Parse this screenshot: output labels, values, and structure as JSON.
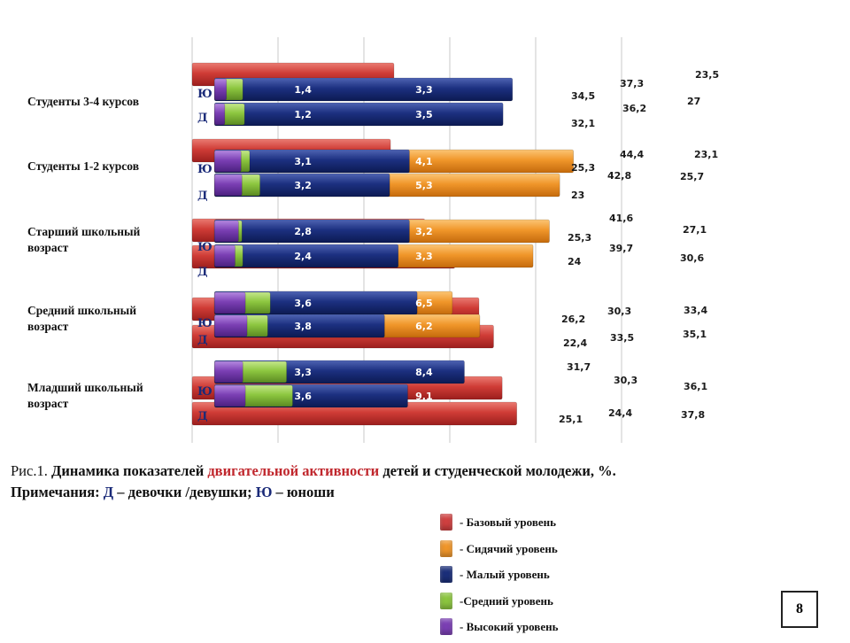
{
  "chart_data": {
    "type": "bar",
    "title": "",
    "xlim": [
      0,
      50
    ],
    "x_ticks": [
      "0",
      "10",
      "20",
      "30",
      "40",
      "50"
    ],
    "grid": true,
    "categories": [
      "Студенты 3-4 курсов",
      "Студенты 1-2 курсов",
      "Старший школьный возраст",
      "Средний школьный возраст",
      "Младший школьный возраст"
    ],
    "group_codes": {
      "male": "Ю",
      "female": "Д"
    },
    "series": [
      {
        "name": "- Базовый уровень",
        "color": "#d04040",
        "values_Ю": [
          23.5,
          23.1,
          27.1,
          33.4,
          36.1
        ],
        "values_Д": [
          null,
          null,
          30.6,
          35.1,
          37.8
        ]
      },
      {
        "name": "- Сидячий уровень",
        "color": "#f0962a",
        "values_Ю": [
          null,
          44.4,
          41.6,
          30.3,
          null
        ],
        "values_Д": [
          null,
          42.8,
          39.7,
          33.5,
          null
        ]
      },
      {
        "name": "- Малый уровень",
        "color": "#1b2f7a",
        "values_Ю": [
          37.3,
          25.3,
          25.3,
          26.2,
          31.7
        ],
        "values_Д": [
          36.2,
          23,
          24,
          22.4,
          25.1
        ]
      },
      {
        "name": "-Средний уровень",
        "color": "#8cc63f",
        "values_Ю": [
          1.4,
          3.1,
          2.8,
          3.6,
          3.3
        ],
        "values_Д": [
          1.2,
          3.2,
          2.4,
          3.8,
          3.6
        ]
      },
      {
        "name": "- Высокий уровень",
        "color": "#7b3fb4",
        "values_Ю": [
          3.3,
          4.1,
          3.2,
          6.5,
          8.4
        ],
        "values_Д": [
          3.5,
          5.3,
          3.3,
          6.2,
          9.1
        ]
      }
    ],
    "annotations": [
      "34,5",
      "32,1",
      "27",
      "25,7",
      "30,3"
    ],
    "legend": "bottom-right"
  },
  "caption": {
    "prefix": "Рис.1. ",
    "part1": "Динамика показателей ",
    "highlight": "двигательной активности",
    "part2": " детей и студенческой молодежи, %.",
    "notes_label": "Примечания: ",
    "d_code": "Д",
    "d_text": " – девочки /девушки; ",
    "y_code": "Ю",
    "y_text": " – юноши"
  },
  "page_number": "8"
}
